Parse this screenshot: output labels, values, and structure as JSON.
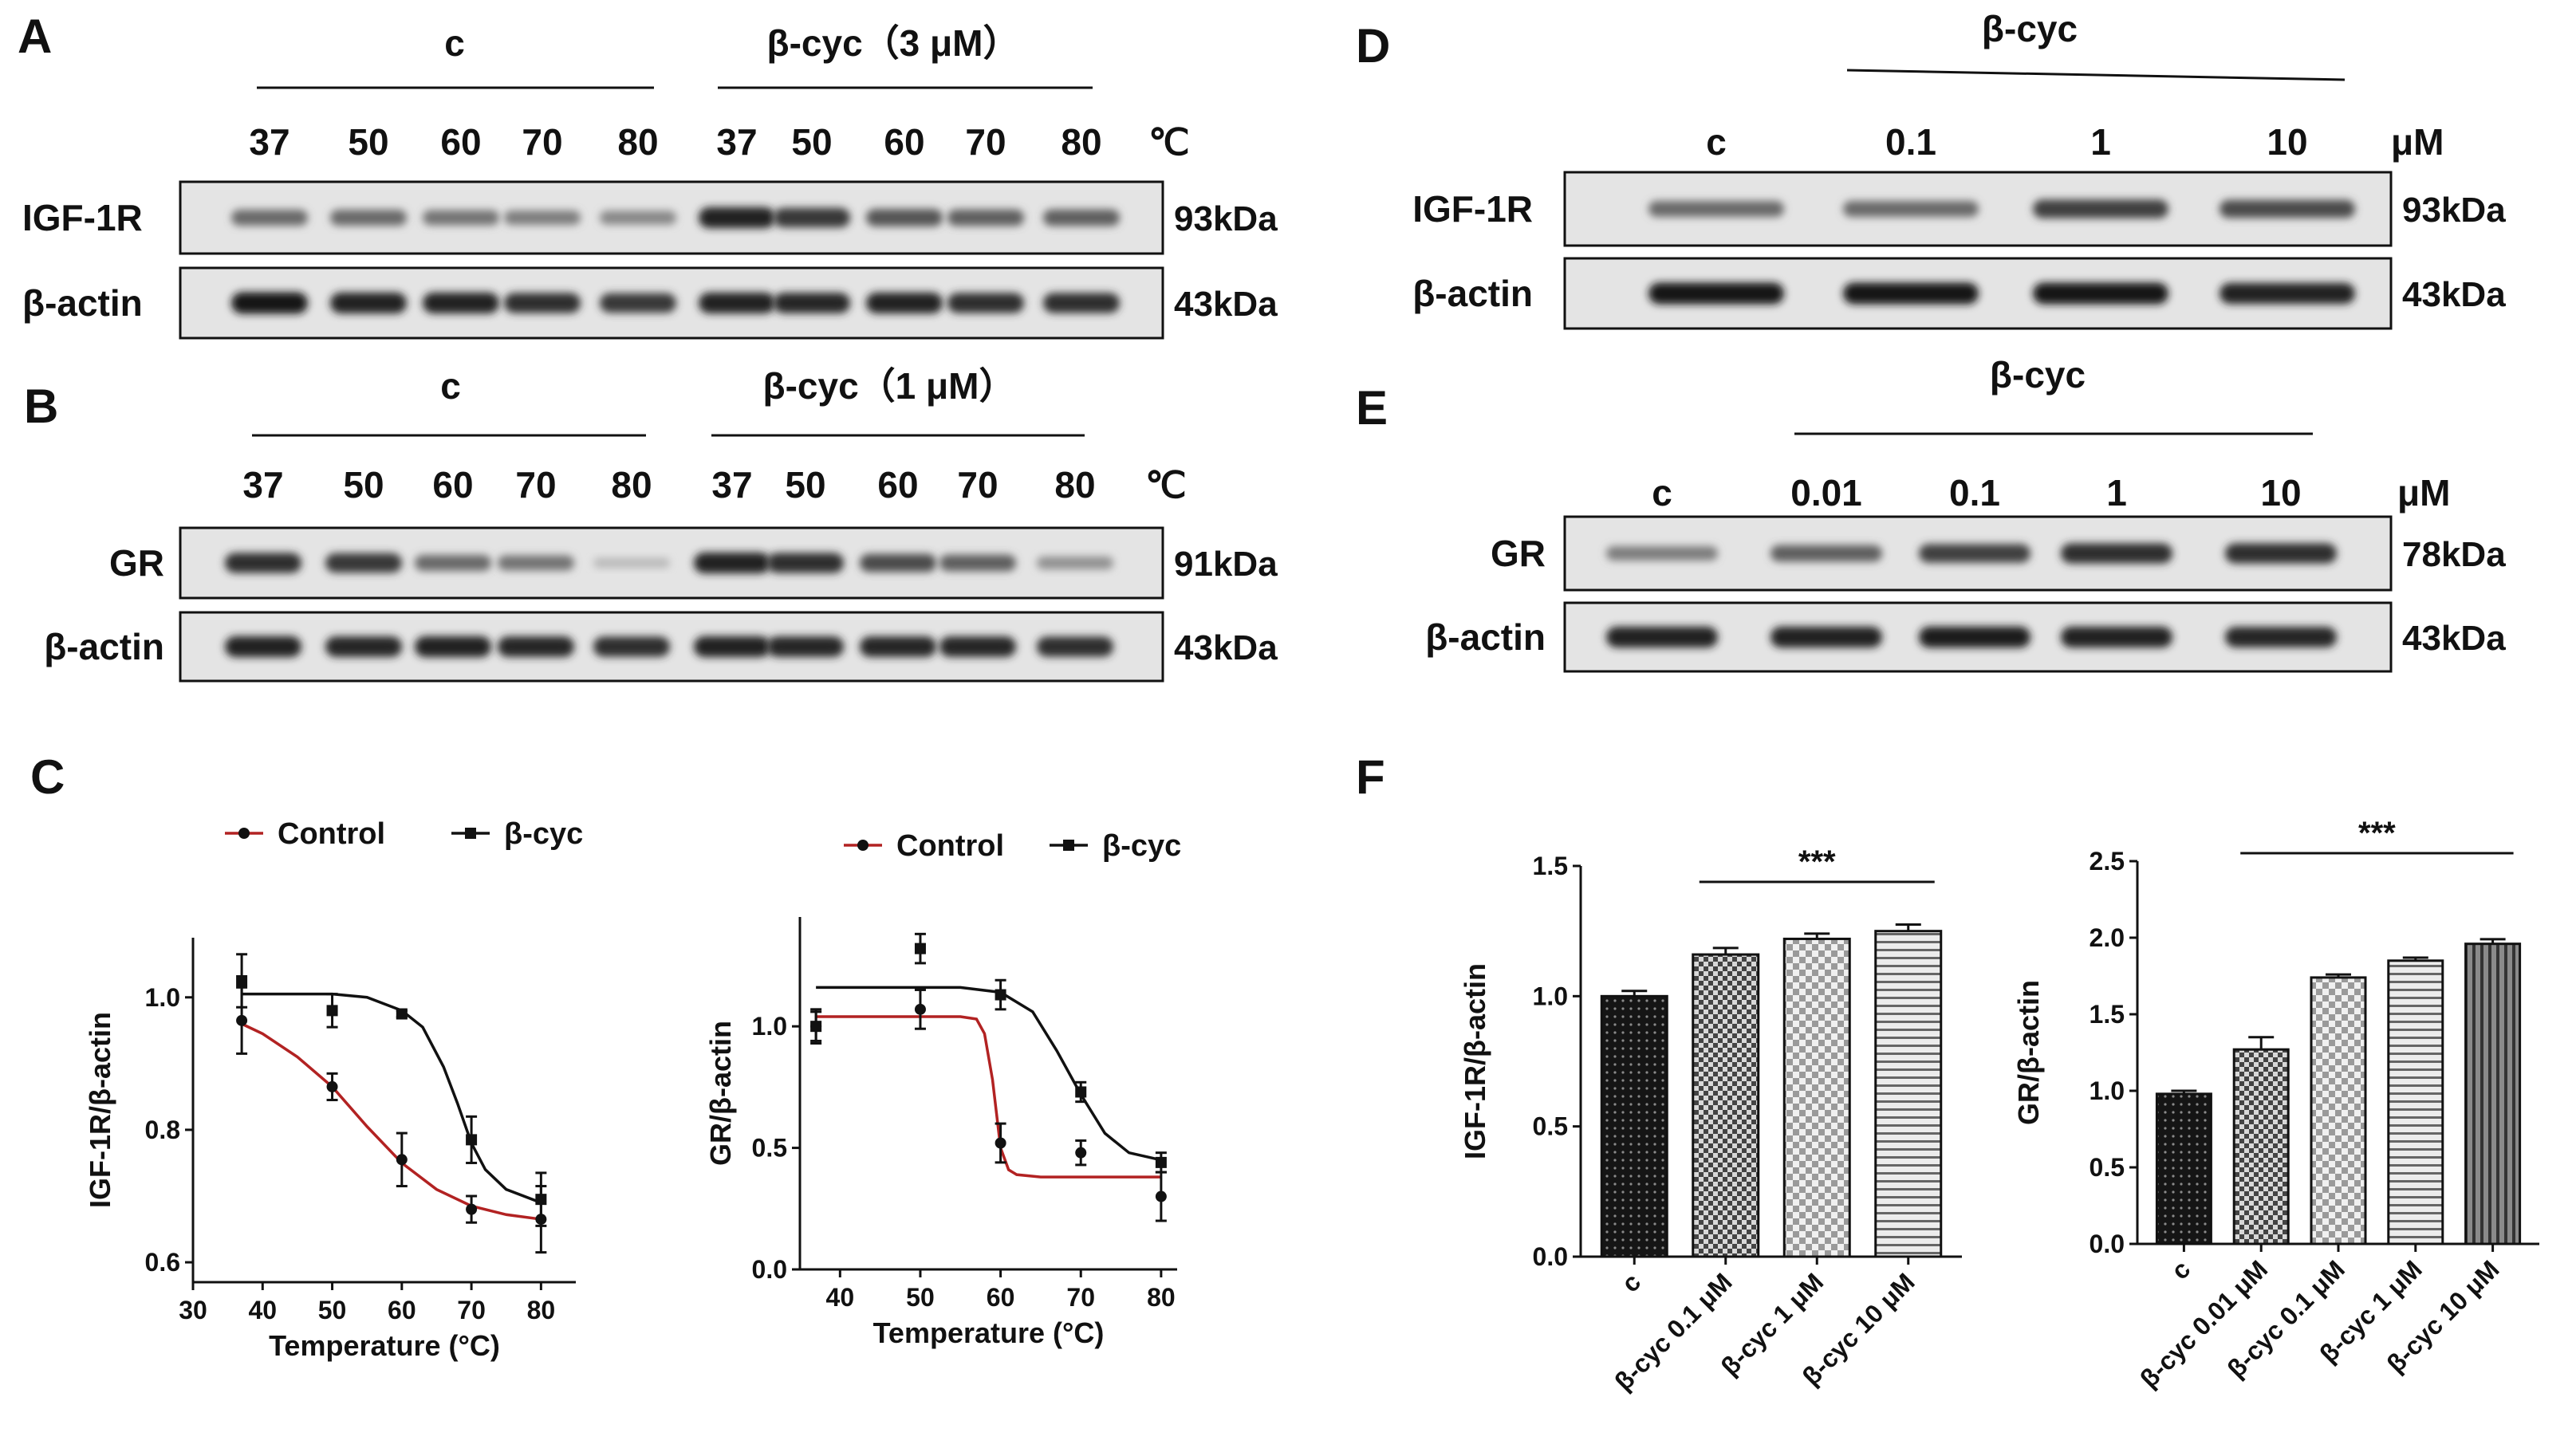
{
  "panels": {
    "A": "A",
    "B": "B",
    "C": "C",
    "D": "D",
    "E": "E",
    "F": "F"
  },
  "blot_A": {
    "group_control": "c",
    "group_treat": "β-cyc（3 μM）",
    "lanes": [
      "37",
      "50",
      "60",
      "70",
      "80",
      "37",
      "50",
      "60",
      "70",
      "80"
    ],
    "unit": "℃",
    "rows": [
      {
        "label": "IGF-1R",
        "kda": "93kDa"
      },
      {
        "label": "β-actin",
        "kda": "43kDa"
      }
    ],
    "intensity": [
      [
        0.55,
        0.55,
        0.5,
        0.45,
        0.4,
        0.9,
        0.8,
        0.65,
        0.6,
        0.6
      ],
      [
        0.95,
        0.9,
        0.9,
        0.85,
        0.8,
        0.9,
        0.88,
        0.9,
        0.85,
        0.85
      ]
    ]
  },
  "blot_B": {
    "group_control": "c",
    "group_treat": "β-cyc（1 μM）",
    "lanes": [
      "37",
      "50",
      "60",
      "70",
      "80",
      "37",
      "50",
      "60",
      "70",
      "80"
    ],
    "unit": "℃",
    "rows": [
      {
        "label": "GR",
        "kda": "91kDa"
      },
      {
        "label": "β-actin",
        "kda": "43kDa"
      }
    ],
    "intensity": [
      [
        0.85,
        0.8,
        0.55,
        0.5,
        0.15,
        0.9,
        0.85,
        0.7,
        0.6,
        0.35
      ],
      [
        0.9,
        0.88,
        0.9,
        0.88,
        0.85,
        0.9,
        0.88,
        0.88,
        0.88,
        0.85
      ]
    ]
  },
  "blot_D": {
    "group_treat": "β-cyc",
    "lanes": [
      "c",
      "0.1",
      "1",
      "10"
    ],
    "unit": "μM",
    "rows": [
      {
        "label": "IGF-1R",
        "kda": "93kDa"
      },
      {
        "label": "β-actin",
        "kda": "43kDa"
      }
    ],
    "intensity": [
      [
        0.55,
        0.55,
        0.75,
        0.7
      ],
      [
        0.95,
        0.95,
        0.95,
        0.9
      ]
    ]
  },
  "blot_E": {
    "group_treat": "β-cyc",
    "lanes": [
      "c",
      "0.01",
      "0.1",
      "1",
      "10"
    ],
    "unit": "μM",
    "rows": [
      {
        "label": "GR",
        "kda": "78kDa"
      },
      {
        "label": "β-actin",
        "kda": "43kDa"
      }
    ],
    "intensity": [
      [
        0.45,
        0.6,
        0.75,
        0.85,
        0.85
      ],
      [
        0.9,
        0.9,
        0.92,
        0.9,
        0.88
      ]
    ]
  },
  "chart_data": [
    {
      "type": "line",
      "xlabel": "Temperature (°C)",
      "ylabel": "IGF-1R/β-actin",
      "xlim": [
        30,
        85
      ],
      "ylim": [
        0.57,
        1.09
      ],
      "xticks": [
        30,
        40,
        50,
        60,
        70,
        80
      ],
      "yticks": [
        0.6,
        0.8,
        1.0
      ],
      "yticklabels": [
        "0.6",
        "0.8",
        "1.0"
      ],
      "legend_position": "top",
      "series": [
        {
          "name": "Control",
          "color": "#b22222",
          "marker": "circle",
          "x": [
            37,
            50,
            60,
            70,
            80
          ],
          "y": [
            0.965,
            0.865,
            0.755,
            0.68,
            0.665
          ],
          "err": [
            0.05,
            0.02,
            0.04,
            0.02,
            0.05
          ],
          "curve": [
            [
              37,
              0.96
            ],
            [
              40,
              0.945
            ],
            [
              45,
              0.91
            ],
            [
              50,
              0.865
            ],
            [
              55,
              0.805
            ],
            [
              60,
              0.75
            ],
            [
              65,
              0.71
            ],
            [
              70,
              0.685
            ],
            [
              75,
              0.672
            ],
            [
              80,
              0.665
            ]
          ]
        },
        {
          "name": "β-cyc",
          "color": "#111111",
          "marker": "square",
          "x": [
            37,
            50,
            60,
            70,
            80
          ],
          "y": [
            1.025,
            0.98,
            0.975,
            0.785,
            0.695
          ],
          "err": [
            0.04,
            0.025,
            0.005,
            0.035,
            0.04
          ],
          "curve": [
            [
              37,
              1.005
            ],
            [
              50,
              1.005
            ],
            [
              55,
              1.0
            ],
            [
              60,
              0.98
            ],
            [
              63,
              0.955
            ],
            [
              66,
              0.895
            ],
            [
              68,
              0.84
            ],
            [
              70,
              0.78
            ],
            [
              72,
              0.74
            ],
            [
              75,
              0.71
            ],
            [
              80,
              0.69
            ]
          ]
        }
      ]
    },
    {
      "type": "line",
      "xlabel": "Temperature (°C)",
      "ylabel": "GR/β-actin",
      "xlim": [
        35,
        82
      ],
      "ylim": [
        0,
        1.45
      ],
      "xticks": [
        40,
        50,
        60,
        70,
        80
      ],
      "yticks": [
        0,
        0.5,
        1.0
      ],
      "yticklabels": [
        "0.0",
        "0.5",
        "1.0"
      ],
      "legend_position": "top",
      "series": [
        {
          "name": "Control",
          "color": "#b22222",
          "marker": "circle",
          "x": [
            37,
            50,
            60,
            70,
            80
          ],
          "y": [
            1.0,
            1.07,
            0.52,
            0.48,
            0.3
          ],
          "err": [
            0.07,
            0.08,
            0.08,
            0.05,
            0.1
          ],
          "curve": [
            [
              37,
              1.04
            ],
            [
              55,
              1.04
            ],
            [
              57,
              1.03
            ],
            [
              58,
              0.97
            ],
            [
              59,
              0.78
            ],
            [
              60,
              0.5
            ],
            [
              61,
              0.41
            ],
            [
              62,
              0.39
            ],
            [
              65,
              0.38
            ],
            [
              80,
              0.38
            ]
          ]
        },
        {
          "name": "β-cyc",
          "color": "#111111",
          "marker": "square",
          "x": [
            37,
            50,
            60,
            70,
            80
          ],
          "y": [
            1.0,
            1.32,
            1.13,
            0.73,
            0.44
          ],
          "err": [
            0.06,
            0.06,
            0.06,
            0.04,
            0.04
          ],
          "curve": [
            [
              37,
              1.16
            ],
            [
              55,
              1.16
            ],
            [
              60,
              1.14
            ],
            [
              64,
              1.06
            ],
            [
              67,
              0.9
            ],
            [
              70,
              0.72
            ],
            [
              73,
              0.56
            ],
            [
              76,
              0.48
            ],
            [
              80,
              0.45
            ]
          ]
        }
      ]
    },
    {
      "type": "bar",
      "ylabel": "IGF-1R/β-actin",
      "categories": [
        "c",
        "β-cyc 0.1 μM",
        "β-cyc 1 μM",
        "β-cyc 10 μM"
      ],
      "values": [
        1.0,
        1.16,
        1.22,
        1.25
      ],
      "err": [
        0.02,
        0.025,
        0.02,
        0.025
      ],
      "ylim": [
        0,
        1.5
      ],
      "yticks": [
        0,
        0.5,
        1.0,
        1.5
      ],
      "yticklabels": [
        "0.0",
        "0.5",
        "1.0",
        "1.5"
      ],
      "significance": {
        "label": "***",
        "from": 1,
        "to": 3
      }
    },
    {
      "type": "bar",
      "ylabel": "GR/β-actin",
      "categories": [
        "c",
        "β-cyc 0.01 μM",
        "β-cyc 0.1 μM",
        "β-cyc 1 μM",
        "β-cyc 10 μM"
      ],
      "values": [
        0.98,
        1.27,
        1.74,
        1.85,
        1.96
      ],
      "err": [
        0.02,
        0.08,
        0.02,
        0.02,
        0.03
      ],
      "ylim": [
        0,
        2.5
      ],
      "yticks": [
        0,
        0.5,
        1.0,
        1.5,
        2.0,
        2.5
      ],
      "yticklabels": [
        "0.0",
        "0.5",
        "1.0",
        "1.5",
        "2.0",
        "2.5"
      ],
      "significance": {
        "label": "***",
        "from": 1,
        "to": 4
      }
    }
  ]
}
